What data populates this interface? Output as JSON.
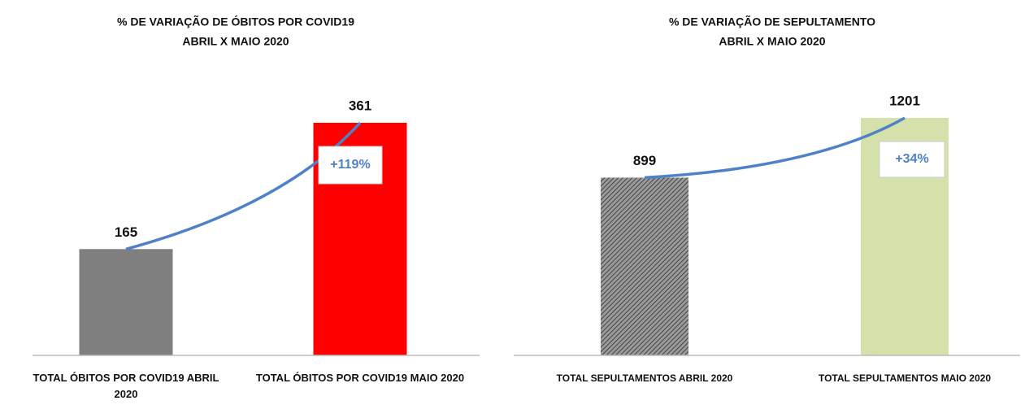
{
  "chart_data": [
    {
      "type": "bar",
      "title": "% DE VARIAÇÃO DE ÓBITOS POR COVID19",
      "subtitle": "ABRIL X MAIO 2020",
      "categories": [
        "TOTAL ÓBITOS POR COVID19 ABRIL 2020",
        "TOTAL ÓBITOS POR COVID19 MAIO 2020"
      ],
      "values": [
        165,
        361
      ],
      "colors": [
        "#7f7f7f",
        "#ff0000"
      ],
      "hatched": [
        false,
        false
      ],
      "line_color": "#4f81c9",
      "annotation": "+119%"
    },
    {
      "type": "bar",
      "title": "% DE VARIAÇÃO DE SEPULTAMENTO",
      "subtitle": "ABRIL X MAIO 2020",
      "categories": [
        "TOTAL SEPULTAMENTOS ABRIL 2020",
        "TOTAL SEPULTAMENTOS MAIO 2020"
      ],
      "values": [
        899,
        1201
      ],
      "colors": [
        "#7f7f7f",
        "#d5e1ab"
      ],
      "hatched": [
        true,
        false
      ],
      "line_color": "#4f81c9",
      "annotation": "+34%"
    }
  ]
}
